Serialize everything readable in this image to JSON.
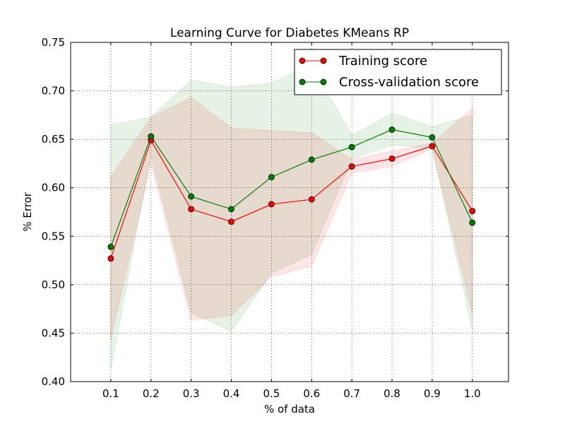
{
  "chart_data": {
    "type": "line",
    "title": "Learning Curve for Diabetes KMeans RP",
    "xlabel": "% of data",
    "ylabel": "% Error",
    "x": [
      0.1,
      0.2,
      0.3,
      0.4,
      0.5,
      0.6,
      0.7,
      0.8,
      0.9,
      1.0
    ],
    "x_tick_labels": [
      "0.1",
      "0.2",
      "0.3",
      "0.4",
      "0.5",
      "0.6",
      "0.7",
      "0.8",
      "0.9",
      "1.0"
    ],
    "xlim": [
      0.0,
      1.09
    ],
    "ylim": [
      0.4,
      0.75
    ],
    "y_ticks": [
      0.4,
      0.45,
      0.5,
      0.55,
      0.6,
      0.65,
      0.7,
      0.75
    ],
    "y_tick_labels": [
      "0.40",
      "0.45",
      "0.50",
      "0.55",
      "0.60",
      "0.65",
      "0.70",
      "0.75"
    ],
    "grid": true,
    "legend_position": "top-right",
    "series": [
      {
        "name": "Training score",
        "color": "#ff0000",
        "band_color": "#ff0000",
        "values": [
          0.527,
          0.649,
          0.578,
          0.565,
          0.583,
          0.588,
          0.622,
          0.63,
          0.643,
          0.576
        ],
        "lower": [
          0.443,
          0.625,
          0.463,
          0.468,
          0.508,
          0.519,
          0.615,
          0.622,
          0.64,
          0.47
        ],
        "upper": [
          0.611,
          0.673,
          0.693,
          0.662,
          0.659,
          0.657,
          0.629,
          0.638,
          0.646,
          0.682
        ]
      },
      {
        "name": "Cross-validation score",
        "color": "#008000",
        "band_color": "#008000",
        "values": [
          0.539,
          0.653,
          0.591,
          0.578,
          0.611,
          0.629,
          0.642,
          0.66,
          0.652,
          0.564
        ],
        "lower": [
          0.413,
          0.633,
          0.471,
          0.452,
          0.512,
          0.531,
          0.63,
          0.644,
          0.641,
          0.453
        ],
        "upper": [
          0.665,
          0.673,
          0.711,
          0.704,
          0.708,
          0.727,
          0.654,
          0.677,
          0.663,
          0.675
        ]
      }
    ]
  }
}
